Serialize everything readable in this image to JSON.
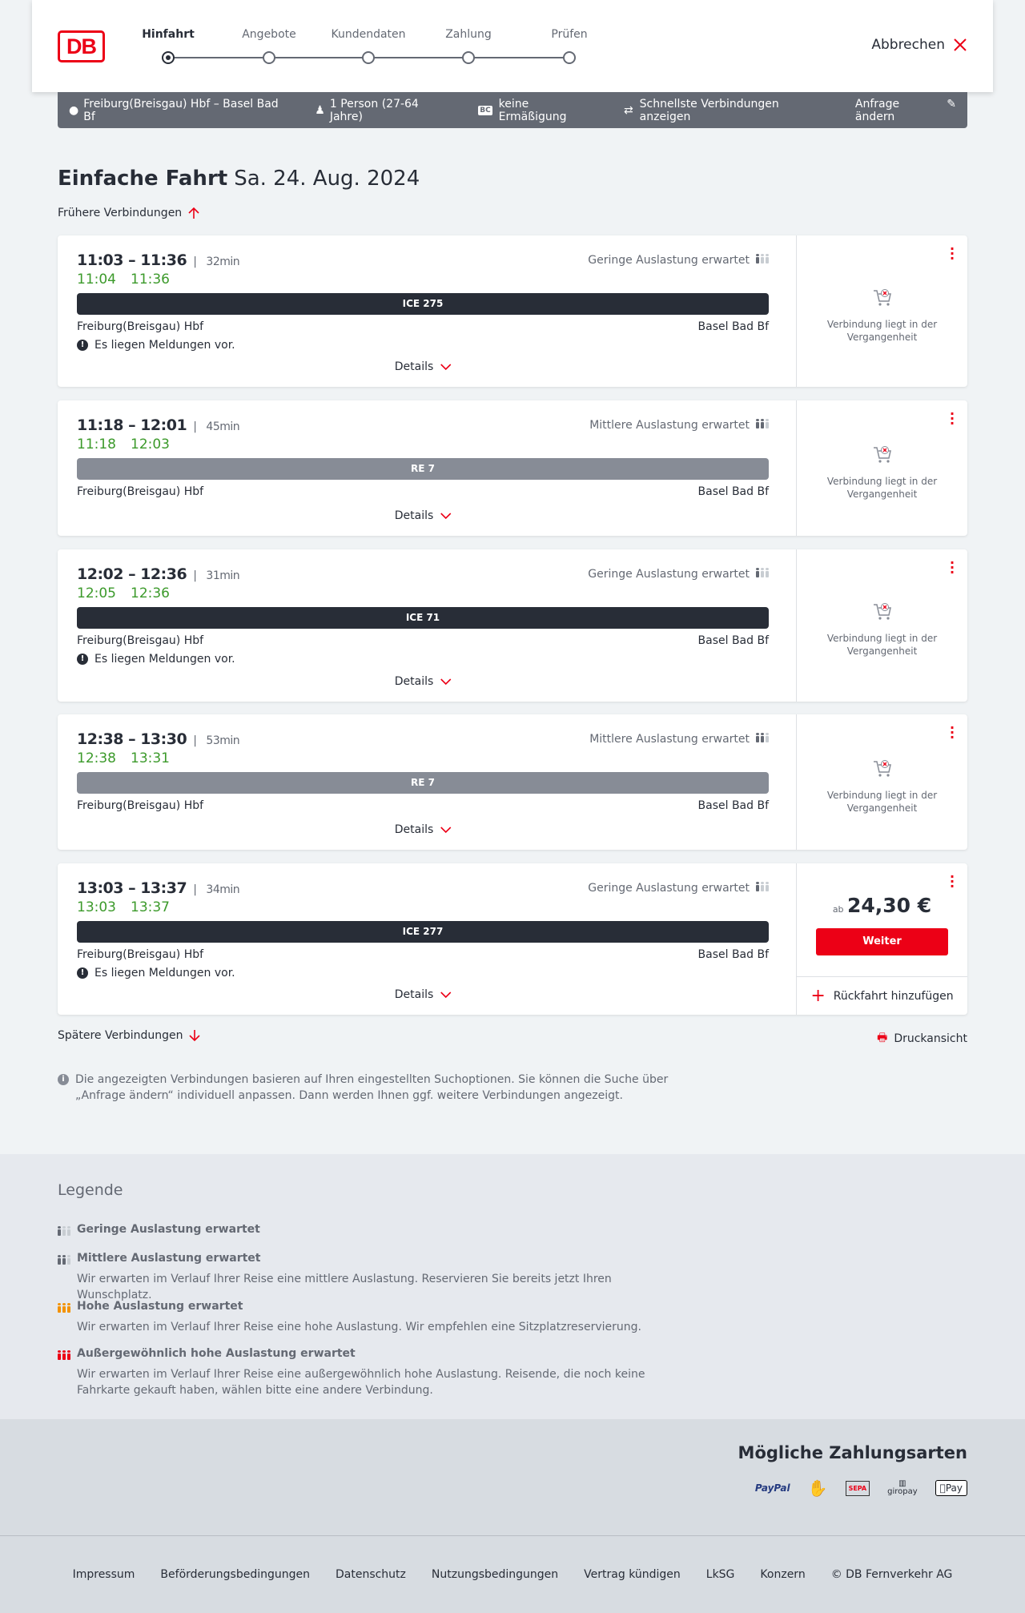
{
  "header": {
    "logo": "DB",
    "steps": [
      {
        "label": "Hinfahrt",
        "active": true
      },
      {
        "label": "Angebote"
      },
      {
        "label": "Kundendaten"
      },
      {
        "label": "Zahlung"
      },
      {
        "label": "Prüfen"
      }
    ],
    "cancel": "Abbrechen"
  },
  "summary": {
    "route": "Freiburg(Breisgau) Hbf – Basel Bad Bf",
    "passengers": "1 Person (27-64 Jahre)",
    "discount": "keine Ermäßigung",
    "fastest": "Schnellste Verbindungen anzeigen",
    "change": "Anfrage ändern"
  },
  "title": {
    "type": "Einfache Fahrt",
    "date": "Sa. 24. Aug. 2024"
  },
  "earlier": "Frühere Verbindungen",
  "later": "Spätere Verbindungen",
  "print": "Druckansicht",
  "details_label": "Details",
  "past_label": "Verbindung liegt in der Vergangenheit",
  "connections": [
    {
      "time": "11:03 – 11:36",
      "duration": "32min",
      "rt_dep": "11:04",
      "rt_arr": "11:36",
      "load": "Geringe Auslastung erwartet",
      "load_level": 1,
      "train": "ICE 275",
      "train_color": "#282d37",
      "from": "Freiburg(Breisgau) Hbf",
      "to": "Basel Bad Bf",
      "message": "Es liegen Meldungen vor."
    },
    {
      "time": "11:18 – 12:01",
      "duration": "45min",
      "rt_dep": "11:18",
      "rt_arr": "12:03",
      "load": "Mittlere Auslastung erwartet",
      "load_level": 2,
      "train": "RE 7",
      "train_color": "#878c96",
      "from": "Freiburg(Breisgau) Hbf",
      "to": "Basel Bad Bf"
    },
    {
      "time": "12:02 – 12:36",
      "duration": "31min",
      "rt_dep": "12:05",
      "rt_arr": "12:36",
      "load": "Geringe Auslastung erwartet",
      "load_level": 1,
      "train": "ICE 71",
      "train_color": "#282d37",
      "from": "Freiburg(Breisgau) Hbf",
      "to": "Basel Bad Bf",
      "message": "Es liegen Meldungen vor."
    },
    {
      "time": "12:38 – 13:30",
      "duration": "53min",
      "rt_dep": "12:38",
      "rt_arr": "13:31",
      "load": "Mittlere Auslastung erwartet",
      "load_level": 2,
      "train": "RE 7",
      "train_color": "#878c96",
      "from": "Freiburg(Breisgau) Hbf",
      "to": "Basel Bad Bf"
    },
    {
      "time": "13:03 – 13:37",
      "duration": "34min",
      "rt_dep": "13:03",
      "rt_arr": "13:37",
      "load": "Geringe Auslastung erwartet",
      "load_level": 1,
      "train": "ICE 277",
      "train_color": "#282d37",
      "from": "Freiburg(Breisgau) Hbf",
      "to": "Basel Bad Bf",
      "message": "Es liegen Meldungen vor.",
      "price_prefix": "ab",
      "price": "24,30 €",
      "button": "Weiter",
      "return": "Rückfahrt hinzufügen"
    }
  ],
  "info": "Die angezeigten Verbindungen basieren auf Ihren eingestellten Suchoptionen. Sie können die Suche über „Anfrage ändern“ individuell anpassen. Dann werden Ihnen ggf. weitere Verbindungen angezeigt.",
  "legend": {
    "title": "Legende",
    "items": [
      {
        "title": "Geringe Auslastung erwartet"
      },
      {
        "title": "Mittlere Auslastung erwartet",
        "text": "Wir erwarten im Verlauf Ihrer Reise eine mittlere Auslastung. Reservieren Sie bereits jetzt Ihren Wunschplatz."
      },
      {
        "title": "Hohe Auslastung erwartet",
        "text": "Wir erwarten im Verlauf Ihrer Reise eine hohe Auslastung. Wir empfehlen eine Sitzplatzreservierung."
      },
      {
        "title": "Außergewöhnlich hohe Auslastung erwartet",
        "text": "Wir erwarten im Verlauf Ihrer Reise eine außergewöhnlich hohe Auslastung. Reisende, die noch keine Fahrkarte gekauft haben, wählen bitte eine andere Verbindung."
      }
    ]
  },
  "payment": {
    "title": "Mögliche Zahlungsarten",
    "methods": [
      "PayPal",
      "Kreditkarte",
      "SEPA",
      "giropay",
      "Pay"
    ]
  },
  "footer": [
    "Impressum",
    "Beförderungsbedingungen",
    "Datenschutz",
    "Nutzungsbedingungen",
    "Vertrag kündigen",
    "LkSG",
    "Konzern",
    "© DB Fernverkehr AG"
  ],
  "colors": {
    "db_red": "#ec0016",
    "realtime_green": "#3c9a2b",
    "summary_bar": "#646973"
  }
}
